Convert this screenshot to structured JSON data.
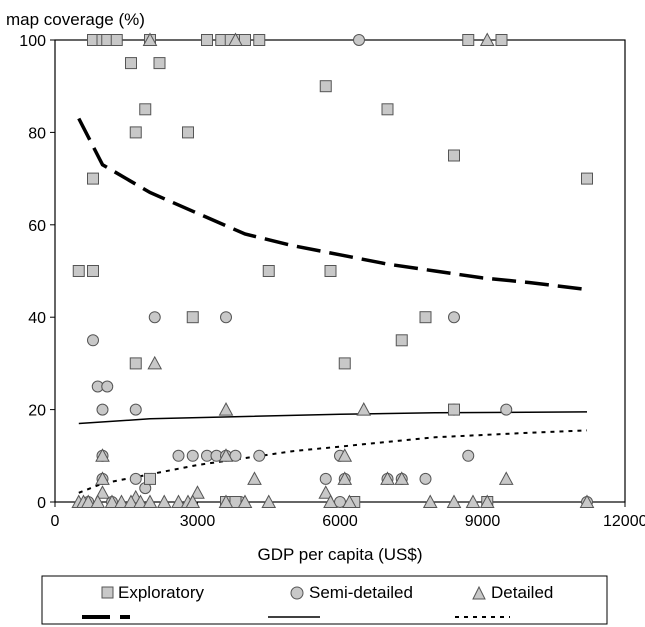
{
  "chart_data": {
    "type": "scatter",
    "ylabel": "map coverage (%)",
    "xlabel": "GDP per capita (US$)",
    "xlim": [
      0,
      12000
    ],
    "ylim": [
      0,
      100
    ],
    "x_ticks": [
      "0",
      "3000",
      "6000",
      "9000",
      "12000"
    ],
    "y_ticks": [
      "0",
      "20",
      "40",
      "60",
      "80",
      "100"
    ],
    "grid": false,
    "legend": [
      "Exploratory",
      "Semi-detailed",
      "Detailed"
    ],
    "series": [
      {
        "name": "Exploratory",
        "marker": "square",
        "points": [
          [
            800,
            100
          ],
          [
            1000,
            100
          ],
          [
            1100,
            100
          ],
          [
            1300,
            100
          ],
          [
            2000,
            100
          ],
          [
            3200,
            100
          ],
          [
            3500,
            100
          ],
          [
            3700,
            100
          ],
          [
            3900,
            100
          ],
          [
            4000,
            100
          ],
          [
            4300,
            100
          ],
          [
            8700,
            100
          ],
          [
            9400,
            100
          ],
          [
            1600,
            95
          ],
          [
            2200,
            95
          ],
          [
            5700,
            90
          ],
          [
            1900,
            85
          ],
          [
            7000,
            85
          ],
          [
            1700,
            80
          ],
          [
            2800,
            80
          ],
          [
            8400,
            75
          ],
          [
            800,
            70
          ],
          [
            11200,
            70
          ],
          [
            500,
            50
          ],
          [
            800,
            50
          ],
          [
            4500,
            50
          ],
          [
            5800,
            50
          ],
          [
            2900,
            40
          ],
          [
            7800,
            40
          ],
          [
            7300,
            35
          ],
          [
            1700,
            30
          ],
          [
            6100,
            30
          ],
          [
            8400,
            20
          ],
          [
            2000,
            5
          ],
          [
            3600,
            0
          ],
          [
            3800,
            0
          ],
          [
            6300,
            0
          ],
          [
            9100,
            0
          ]
        ]
      },
      {
        "name": "Semi-detailed",
        "marker": "circle",
        "points": [
          [
            1300,
            100
          ],
          [
            4000,
            100
          ],
          [
            6400,
            100
          ],
          [
            800,
            35
          ],
          [
            2100,
            40
          ],
          [
            3600,
            40
          ],
          [
            8400,
            40
          ],
          [
            900,
            25
          ],
          [
            1100,
            25
          ],
          [
            1000,
            20
          ],
          [
            1700,
            20
          ],
          [
            8400,
            20
          ],
          [
            9500,
            20
          ],
          [
            1000,
            10
          ],
          [
            2600,
            10
          ],
          [
            2900,
            10
          ],
          [
            3200,
            10
          ],
          [
            3400,
            10
          ],
          [
            3600,
            10
          ],
          [
            3800,
            10
          ],
          [
            4300,
            10
          ],
          [
            6000,
            10
          ],
          [
            8700,
            10
          ],
          [
            1000,
            5
          ],
          [
            1700,
            5
          ],
          [
            5700,
            5
          ],
          [
            6100,
            5
          ],
          [
            7000,
            5
          ],
          [
            7300,
            5
          ],
          [
            7800,
            5
          ],
          [
            1900,
            3
          ],
          [
            700,
            0
          ],
          [
            1200,
            0
          ],
          [
            3900,
            0
          ],
          [
            6000,
            0
          ],
          [
            9100,
            0
          ],
          [
            11200,
            0
          ]
        ]
      },
      {
        "name": "Detailed",
        "marker": "triangle",
        "points": [
          [
            2000,
            100
          ],
          [
            3800,
            100
          ],
          [
            9100,
            100
          ],
          [
            2100,
            30
          ],
          [
            3600,
            20
          ],
          [
            6500,
            20
          ],
          [
            1000,
            10
          ],
          [
            3600,
            10
          ],
          [
            6100,
            10
          ],
          [
            1000,
            5
          ],
          [
            4200,
            5
          ],
          [
            6100,
            5
          ],
          [
            7000,
            5
          ],
          [
            7300,
            5
          ],
          [
            9500,
            5
          ],
          [
            1000,
            2
          ],
          [
            3000,
            2
          ],
          [
            5700,
            2
          ],
          [
            1700,
            1
          ],
          [
            500,
            0
          ],
          [
            600,
            0
          ],
          [
            700,
            0
          ],
          [
            900,
            0
          ],
          [
            1200,
            0
          ],
          [
            1400,
            0
          ],
          [
            1600,
            0
          ],
          [
            1800,
            0
          ],
          [
            2000,
            0
          ],
          [
            2300,
            0
          ],
          [
            2600,
            0
          ],
          [
            2800,
            0
          ],
          [
            2900,
            0
          ],
          [
            3600,
            0
          ],
          [
            4000,
            0
          ],
          [
            4500,
            0
          ],
          [
            5800,
            0
          ],
          [
            6200,
            0
          ],
          [
            7900,
            0
          ],
          [
            8400,
            0
          ],
          [
            8800,
            0
          ],
          [
            9100,
            0
          ],
          [
            11200,
            0
          ]
        ]
      }
    ],
    "trend_lines": [
      {
        "style": "long-dash",
        "x": [
          500,
          1000,
          2000,
          3000,
          4000,
          5000,
          6000,
          7000,
          8000,
          9000,
          10000,
          11200
        ],
        "y": [
          83,
          73,
          67,
          62.5,
          58,
          55.5,
          53.5,
          51.5,
          50,
          48.5,
          47.5,
          46
        ]
      },
      {
        "style": "solid",
        "x": [
          500,
          2000,
          4000,
          6000,
          8000,
          11200
        ],
        "y": [
          17,
          18,
          18.5,
          19,
          19.3,
          19.5
        ]
      },
      {
        "style": "short-dash",
        "x": [
          500,
          1000,
          2000,
          3000,
          4000,
          5000,
          6000,
          7000,
          8000,
          9000,
          10000,
          11200
        ],
        "y": [
          2,
          4,
          6,
          8,
          9.5,
          11,
          12,
          13,
          14,
          14.5,
          15,
          15.5
        ]
      }
    ]
  }
}
